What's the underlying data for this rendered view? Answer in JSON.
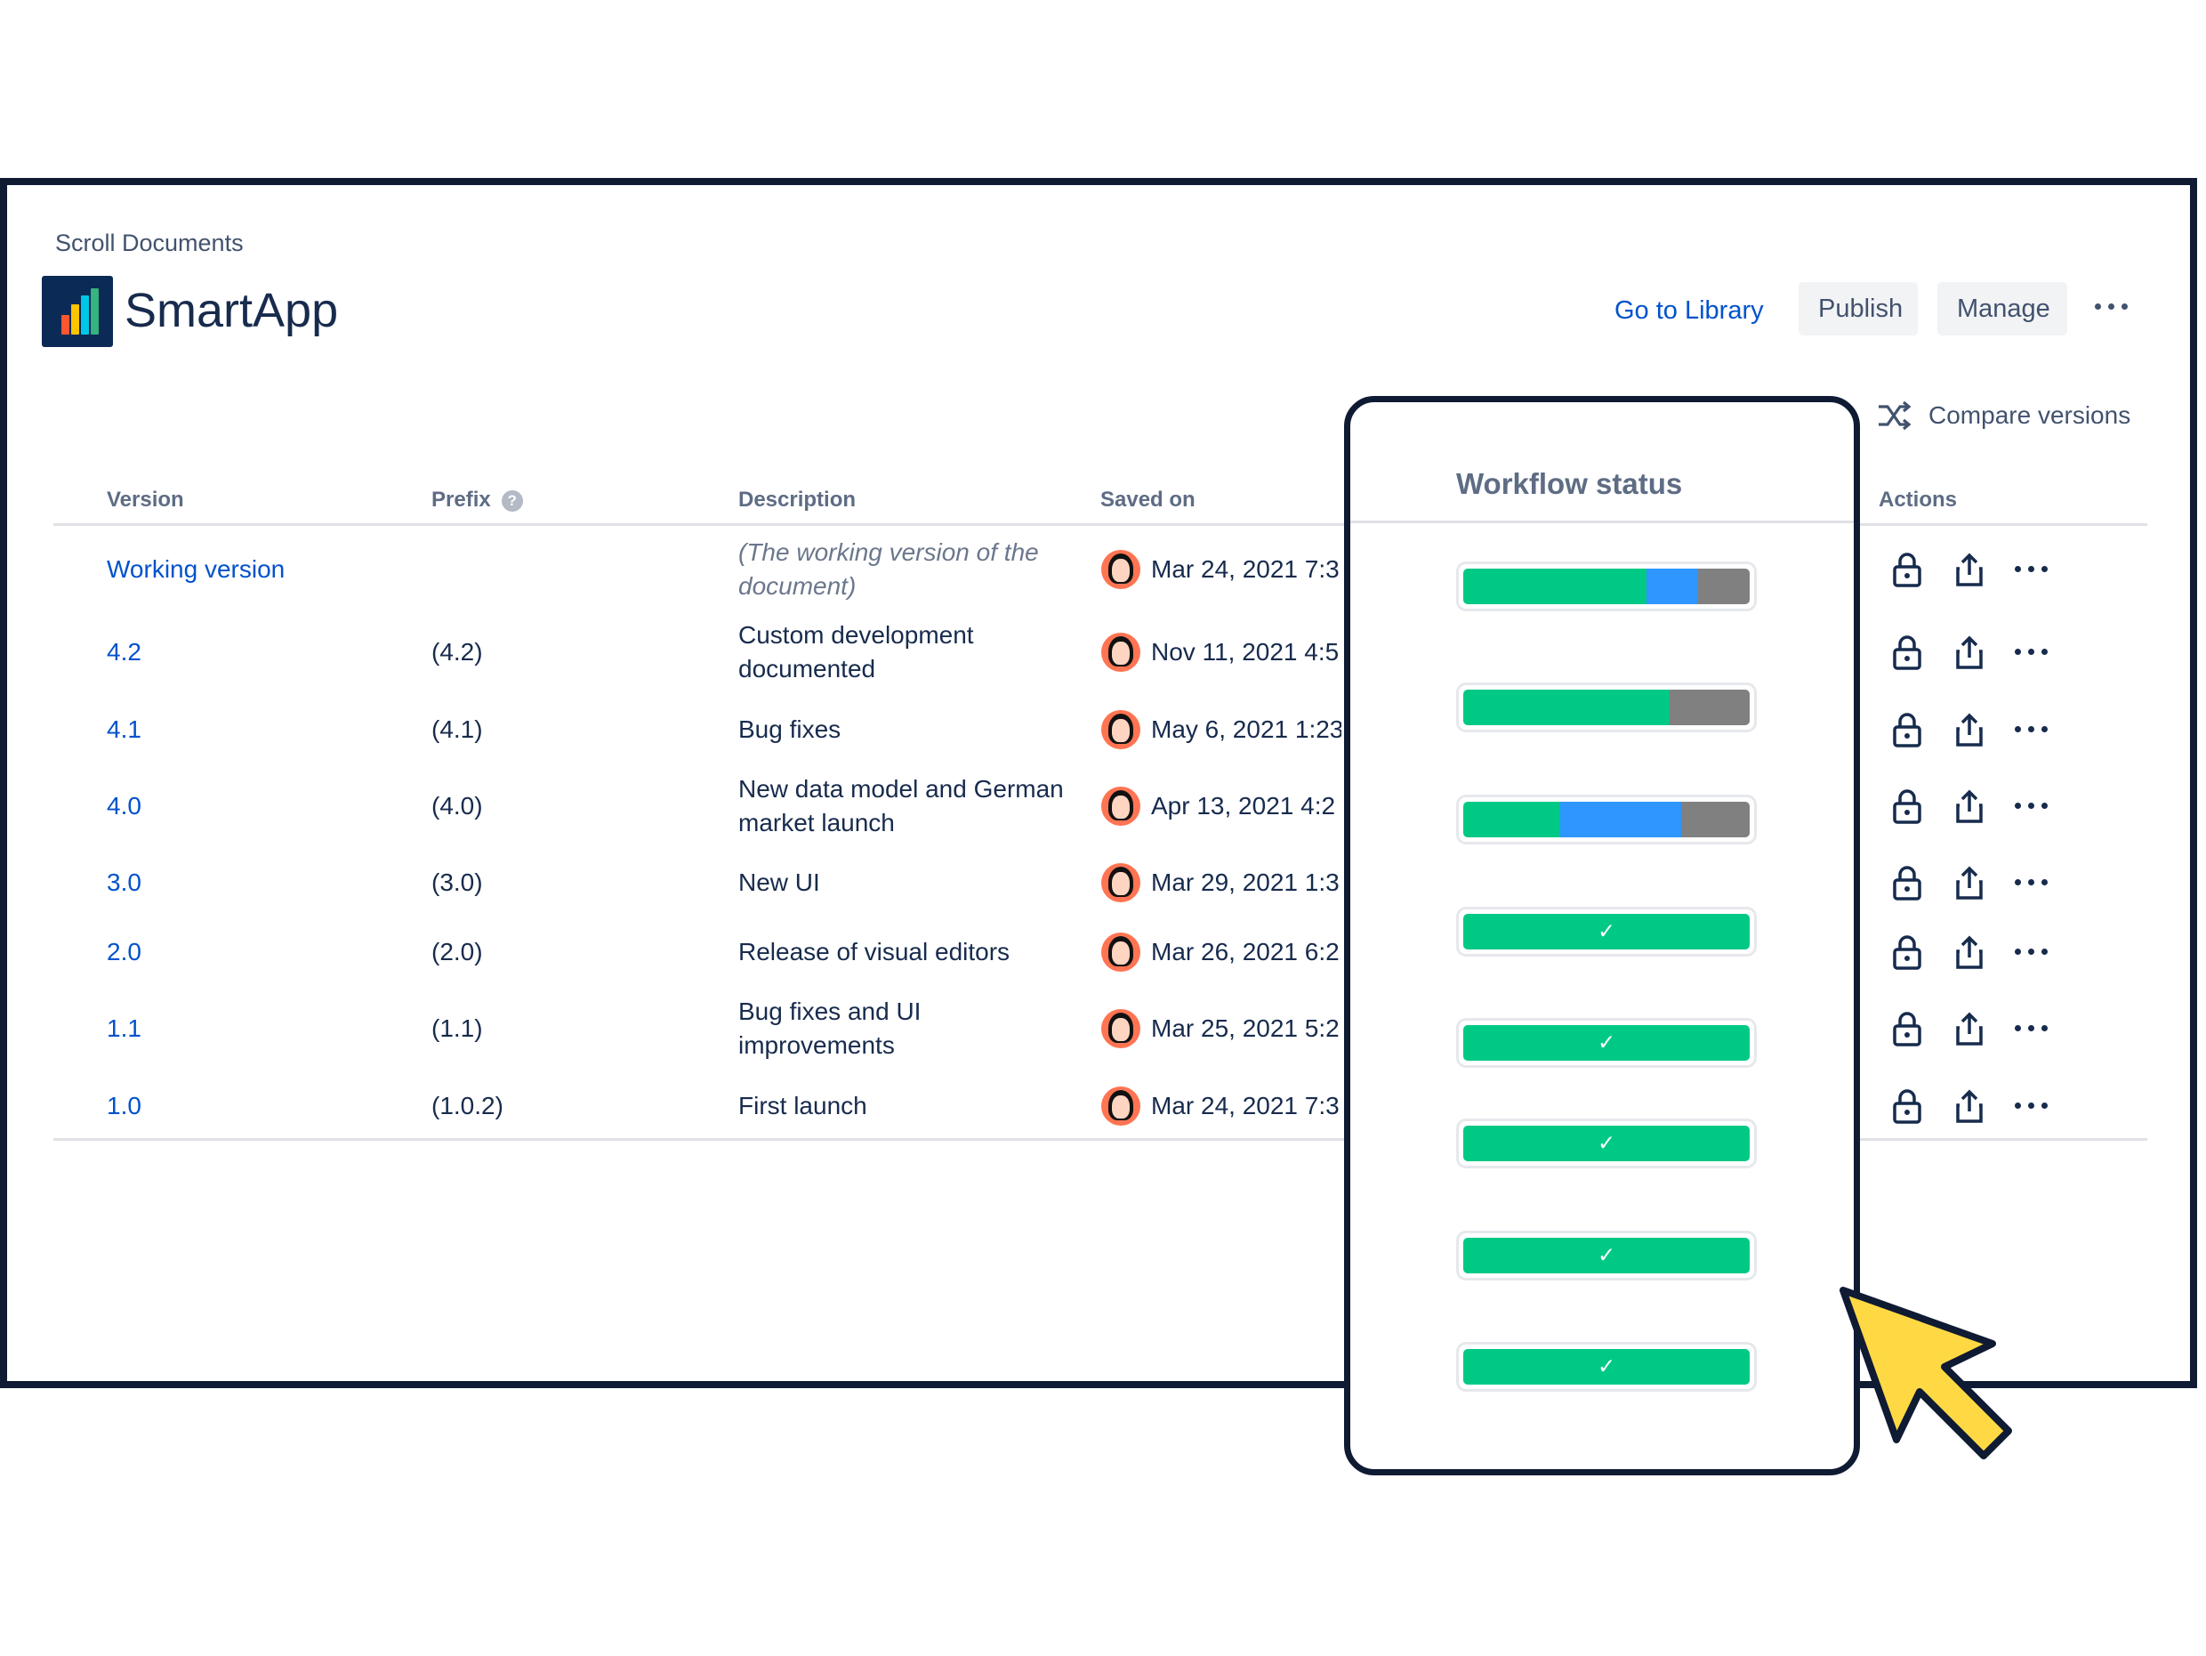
{
  "app": {
    "kicker": "Scroll Documents",
    "title": "SmartApp"
  },
  "header": {
    "goto_label": "Go to Library",
    "publish_label": "Publish",
    "manage_label": "Manage"
  },
  "compare_label": "Compare versions",
  "columns": {
    "version": "Version",
    "prefix": "Prefix",
    "description": "Description",
    "saved_on": "Saved on",
    "actions": "Actions",
    "help": "?"
  },
  "workflow": {
    "title": "Workflow status"
  },
  "colors": {
    "green": "#00c985",
    "blue": "#2f95ff",
    "gray": "#808080",
    "link": "#0052cc",
    "frame": "#0f1a33",
    "cursor": "#ffd944"
  },
  "rows": [
    {
      "version": "Working version",
      "prefix": "",
      "description": "(The working version of the document)",
      "italic": true,
      "saved": "Mar 24, 2021 7:3",
      "status": {
        "green": 0.64,
        "blue": 0.18,
        "gray": 0.18
      }
    },
    {
      "version": "4.2",
      "prefix": "(4.2)",
      "description": "Custom development documented",
      "saved": "Nov 11, 2021 4:5",
      "status": {
        "green": 0.72,
        "blue": 0,
        "gray": 0.28
      }
    },
    {
      "version": "4.1",
      "prefix": "(4.1)",
      "description": "Bug fixes",
      "saved": "May 6, 2021 1:23",
      "status": {
        "green": 0.34,
        "blue": 0.42,
        "gray": 0.24
      }
    },
    {
      "version": "4.0",
      "prefix": "(4.0)",
      "description": "New data model and German market launch",
      "saved": "Apr 13, 2021 4:2",
      "status": {
        "green": 1,
        "blue": 0,
        "gray": 0,
        "done": true
      }
    },
    {
      "version": "3.0",
      "prefix": "(3.0)",
      "description": "New UI",
      "saved": "Mar 29, 2021 1:3",
      "status": {
        "green": 1,
        "blue": 0,
        "gray": 0,
        "done": true
      }
    },
    {
      "version": "2.0",
      "prefix": "(2.0)",
      "description": "Release of visual editors",
      "saved": "Mar 26, 2021 6:2",
      "status": {
        "green": 1,
        "blue": 0,
        "gray": 0,
        "done": true
      }
    },
    {
      "version": "1.1",
      "prefix": "(1.1)",
      "description": "Bug fixes and UI improvements",
      "saved": "Mar 25, 2021 5:2",
      "status": {
        "green": 1,
        "blue": 0,
        "gray": 0,
        "done": true
      }
    },
    {
      "version": "1.0",
      "prefix": "(1.0.2)",
      "description": "First launch",
      "saved": "Mar 24, 2021 7:3",
      "status": {
        "green": 1,
        "blue": 0,
        "gray": 0,
        "done": true
      }
    }
  ]
}
